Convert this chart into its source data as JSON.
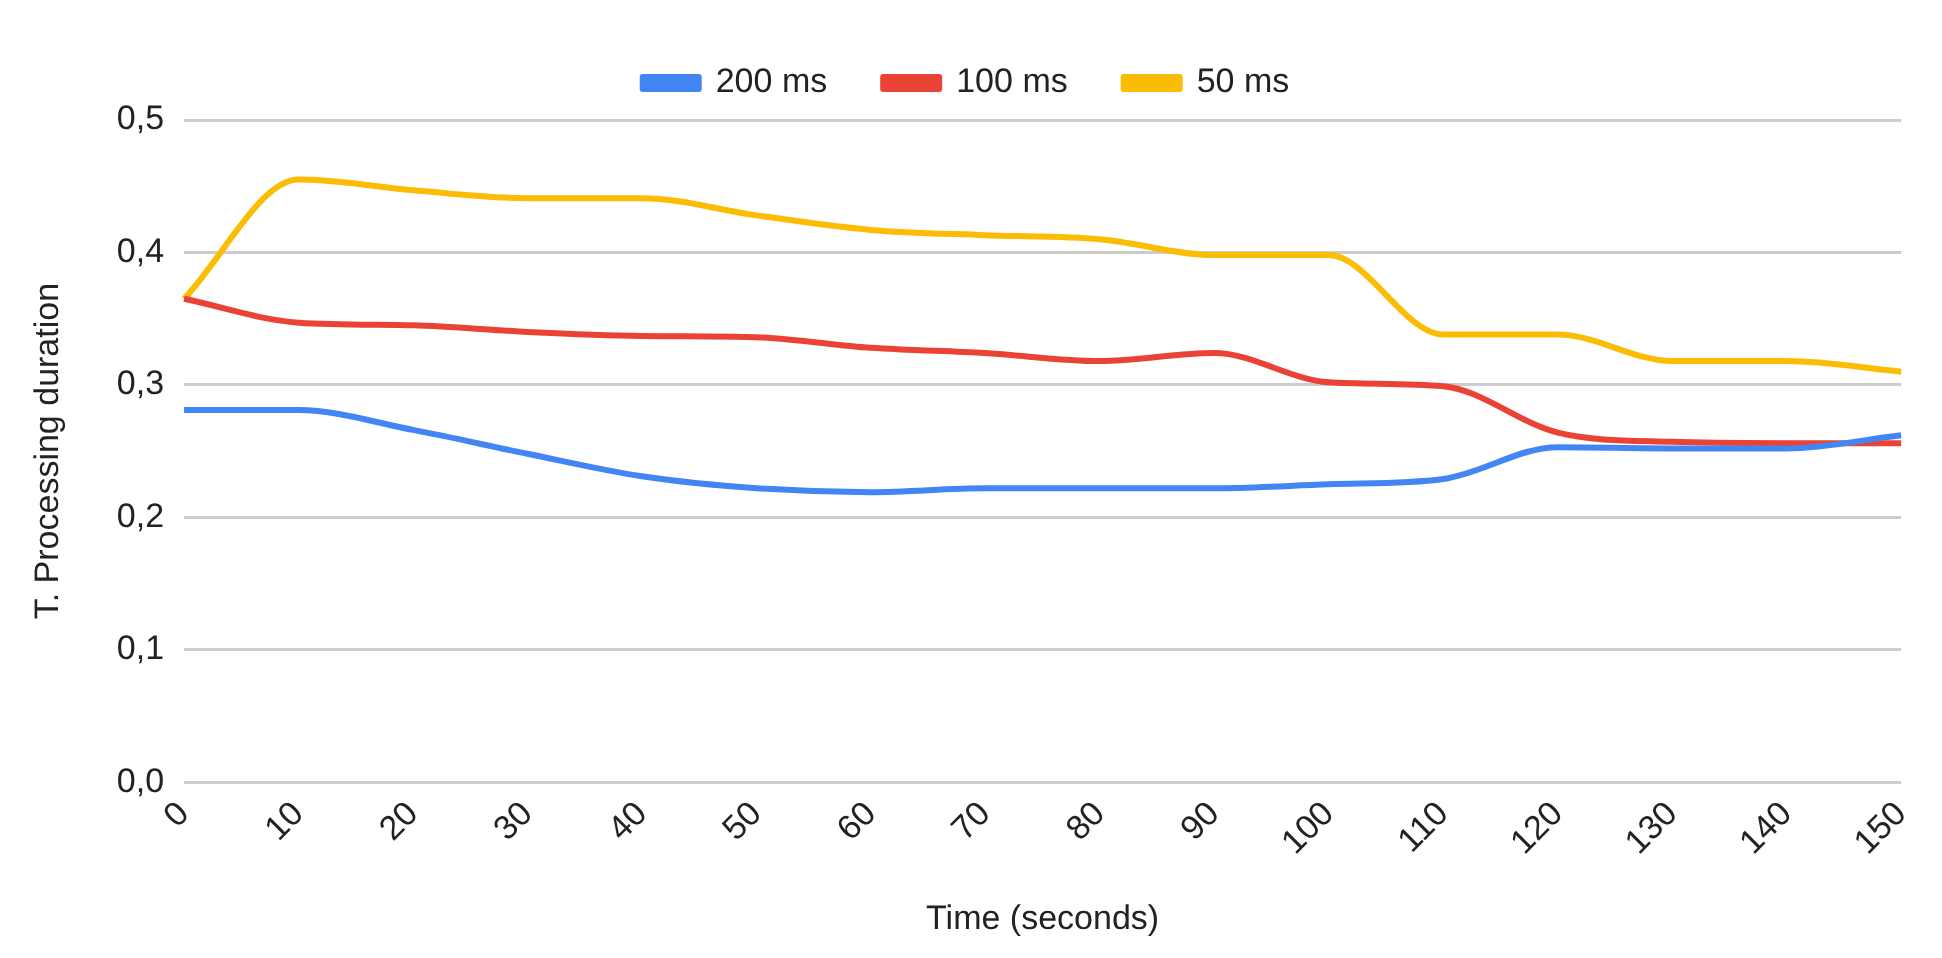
{
  "chart_data": {
    "type": "line",
    "xlabel": "Time (seconds)",
    "ylabel": "T. Processing duration",
    "categories": [
      "0",
      "10",
      "20",
      "30",
      "40",
      "50",
      "60",
      "70",
      "80",
      "90",
      "100",
      "110",
      "120",
      "130",
      "140",
      "150"
    ],
    "series": [
      {
        "name": "200 ms",
        "color": "#4285f4",
        "values": [
          0.281,
          0.281,
          0.266,
          0.248,
          0.231,
          0.222,
          0.219,
          0.222,
          0.222,
          0.222,
          0.225,
          0.229,
          0.253,
          0.252,
          0.252,
          0.262
        ]
      },
      {
        "name": "100 ms",
        "color": "#ea4335",
        "values": [
          0.365,
          0.347,
          0.345,
          0.34,
          0.337,
          0.336,
          0.328,
          0.324,
          0.318,
          0.324,
          0.302,
          0.299,
          0.264,
          0.257,
          0.256,
          0.256
        ]
      },
      {
        "name": "50 ms",
        "color": "#fbbc04",
        "values": [
          0.365,
          0.455,
          0.447,
          0.441,
          0.441,
          0.428,
          0.417,
          0.413,
          0.41,
          0.398,
          0.398,
          0.338,
          0.338,
          0.318,
          0.318,
          0.31
        ]
      }
    ],
    "ylim": [
      0,
      0.5
    ],
    "yticks": [
      {
        "value": 0,
        "label": "0,0"
      },
      {
        "value": 0.1,
        "label": "0,1"
      },
      {
        "value": 0.2,
        "label": "0,2"
      },
      {
        "value": 0.3,
        "label": "0,3"
      },
      {
        "value": 0.4,
        "label": "0,4"
      },
      {
        "value": 0.5,
        "label": "0,5"
      }
    ],
    "grid": "y",
    "legend": "top",
    "marker": "none",
    "line_style": "solid"
  }
}
